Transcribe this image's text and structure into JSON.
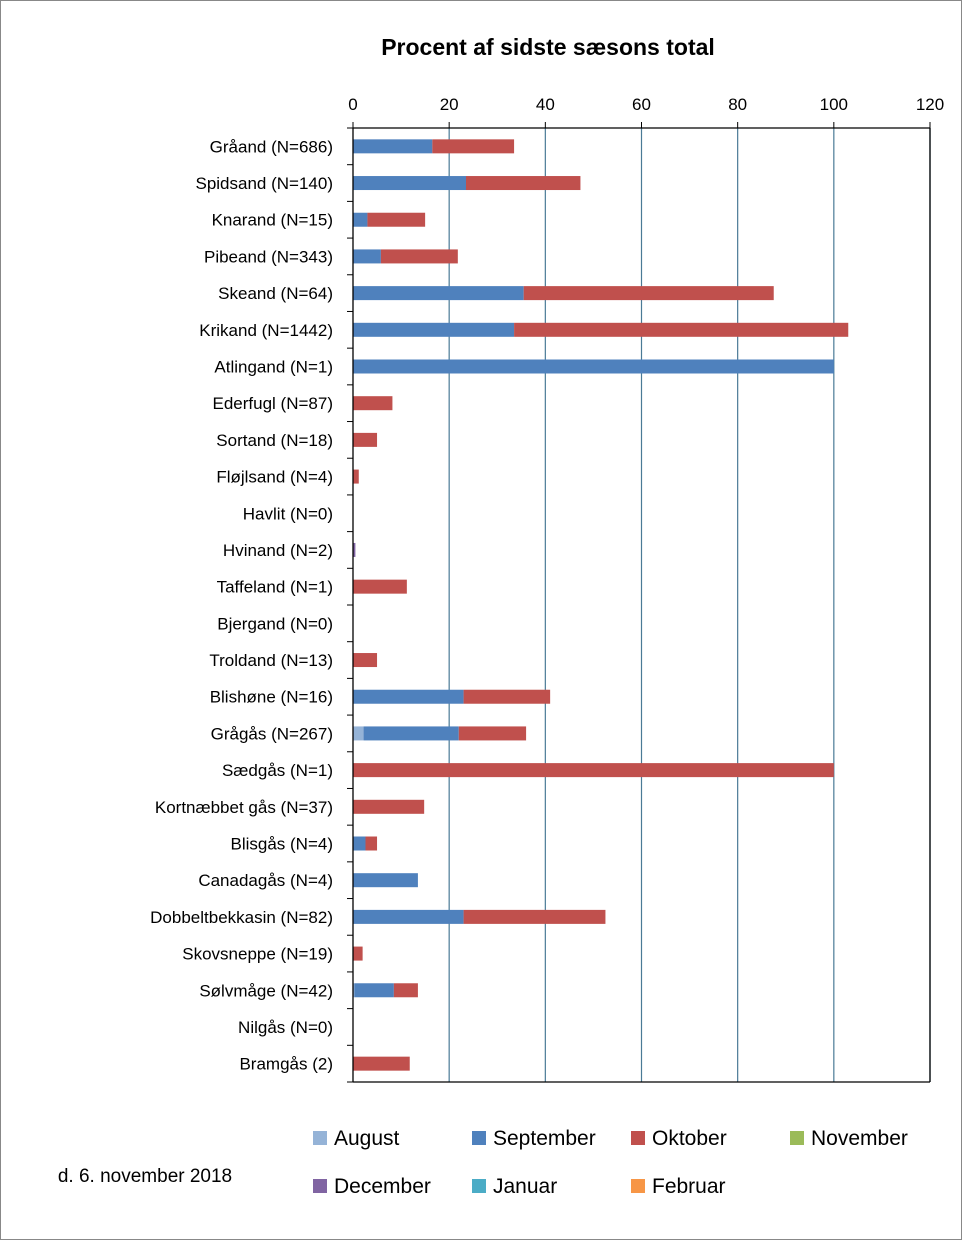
{
  "chart_data": {
    "type": "bar",
    "orientation": "horizontal",
    "stacked": true,
    "title": "Procent af sidste sæsons total",
    "xlim": [
      0,
      120
    ],
    "xticks": [
      0,
      20,
      40,
      60,
      80,
      100,
      120
    ],
    "x_axis_position": "top",
    "grid": true,
    "legend_position": "bottom",
    "categories": [
      "Gråand (N=686)",
      "Spidsand (N=140)",
      "Knarand (N=15)",
      "Pibeand (N=343)",
      "Skeand (N=64)",
      "Krikand (N=1442)",
      "Atlingand (N=1)",
      "Ederfugl (N=87)",
      "Sortand (N=18)",
      "Fløjlsand (N=4)",
      "Havlit (N=0)",
      "Hvinand (N=2)",
      "Taffeland (N=1)",
      "Bjergand (N=0)",
      "Troldand (N=13)",
      "Blishøne (N=16)",
      "Grågås (N=267)",
      "Sædgås (N=1)",
      "Kortnæbbet gås (N=37)",
      "Blisgås (N=4)",
      "Canadagås (N=4)",
      "Dobbeltbekkasin (N=82)",
      "Skovsneppe (N=19)",
      "Sølvmåge (N=42)",
      "Nilgås (N=0)",
      "Bramgås (2)"
    ],
    "series": [
      {
        "name": "August",
        "color": "#95b3d7",
        "values": [
          0,
          0,
          0,
          0,
          0,
          0,
          0,
          0,
          0,
          0,
          0,
          0,
          0,
          0,
          0,
          0,
          2.2,
          0,
          0,
          0,
          0,
          0,
          0,
          0.3,
          0,
          0
        ]
      },
      {
        "name": "September",
        "color": "#4f81bd",
        "values": [
          16.5,
          23.5,
          3,
          5.8,
          35.5,
          33.5,
          100,
          0,
          0,
          0,
          0,
          0,
          0,
          0,
          0,
          23,
          19.8,
          0,
          0,
          2.6,
          13.5,
          23,
          0,
          8.2,
          0,
          0
        ]
      },
      {
        "name": "Oktober",
        "color": "#c0504d",
        "values": [
          17,
          23.8,
          12,
          16,
          52,
          69.5,
          0,
          8.2,
          5,
          1.2,
          0,
          0,
          11.2,
          0,
          5,
          18,
          14,
          100,
          14.8,
          2.4,
          0,
          29.5,
          2,
          5,
          0,
          11.8
        ]
      },
      {
        "name": "November",
        "color": "#9bbb59",
        "values": [
          0,
          0,
          0,
          0,
          0,
          0,
          0,
          0,
          0,
          0,
          0,
          0,
          0,
          0,
          0,
          0,
          0,
          0,
          0,
          0,
          0,
          0,
          0,
          0,
          0,
          0
        ]
      },
      {
        "name": "December",
        "color": "#8064a2",
        "values": [
          0,
          0,
          0,
          0,
          0,
          0,
          0,
          0,
          0,
          0,
          0,
          0.5,
          0,
          0,
          0,
          0,
          0,
          0,
          0,
          0,
          0,
          0,
          0,
          0,
          0,
          0
        ]
      },
      {
        "name": "Januar",
        "color": "#4bacc6",
        "values": [
          0,
          0,
          0,
          0,
          0,
          0,
          0,
          0,
          0,
          0,
          0,
          0,
          0,
          0,
          0,
          0,
          0,
          0,
          0,
          0,
          0,
          0,
          0,
          0,
          0,
          0
        ]
      },
      {
        "name": "Februar",
        "color": "#f79646",
        "values": [
          0,
          0,
          0,
          0,
          0,
          0,
          0,
          0,
          0,
          0,
          0,
          0,
          0,
          0,
          0,
          0,
          0,
          0,
          0,
          0,
          0,
          0,
          0,
          0,
          0,
          0
        ]
      }
    ],
    "footnote": "d. 6. november  2018",
    "gridline_color": "#4a7a96"
  }
}
